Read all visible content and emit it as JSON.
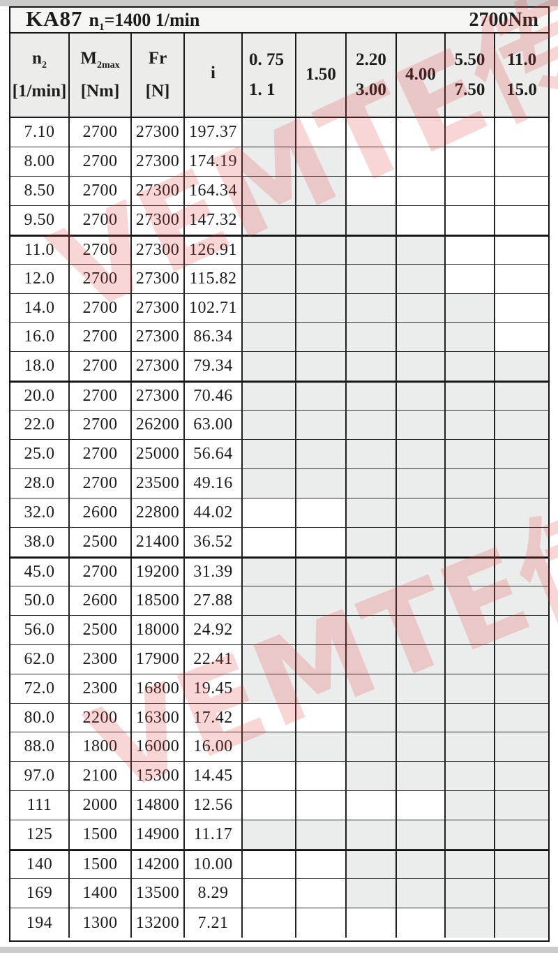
{
  "title": {
    "model": "KA87",
    "speed_prefix": "n",
    "speed_sub": "1",
    "speed_suffix": "=1400 1/min",
    "torque": "2700Nm"
  },
  "watermark": {
    "text": "VEMTE传动",
    "color": "#e23a3a"
  },
  "colors": {
    "shaded_cell": "#ebedec",
    "header_bg": "#ececeb",
    "title_bg": "#f5f5f3",
    "edge_strip": "#cbcbcb"
  },
  "table": {
    "columns": [
      {
        "id": "n2",
        "base": "n",
        "sub": "2",
        "unit": "[1/min]"
      },
      {
        "id": "m2max",
        "base": "M",
        "sub": "2max",
        "unit": "[Nm]"
      },
      {
        "id": "fr",
        "base": "Fr",
        "sub": "",
        "unit": "[N]"
      },
      {
        "id": "i",
        "base": "i",
        "sub": "",
        "unit": ""
      }
    ],
    "power_columns": [
      {
        "lines": [
          "0. 75",
          "1. 1"
        ]
      },
      {
        "lines": [
          "1.50"
        ]
      },
      {
        "lines": [
          "2.20",
          "3.00"
        ]
      },
      {
        "lines": [
          "4.00"
        ]
      },
      {
        "lines": [
          "5.50",
          "7.50"
        ]
      },
      {
        "lines": [
          "11.0",
          "15.0"
        ]
      }
    ],
    "rows": [
      {
        "n2": "7.10",
        "m2max": "2700",
        "fr": "27300",
        "i": "197.37",
        "shaded": [
          1,
          0,
          0,
          0,
          0,
          0
        ],
        "group": false
      },
      {
        "n2": "8.00",
        "m2max": "2700",
        "fr": "27300",
        "i": "174.19",
        "shaded": [
          1,
          1,
          0,
          0,
          0,
          0
        ],
        "group": false
      },
      {
        "n2": "8.50",
        "m2max": "2700",
        "fr": "27300",
        "i": "164.34",
        "shaded": [
          1,
          1,
          0,
          0,
          0,
          0
        ],
        "group": false
      },
      {
        "n2": "9.50",
        "m2max": "2700",
        "fr": "27300",
        "i": "147.32",
        "shaded": [
          1,
          1,
          1,
          0,
          0,
          0
        ],
        "group": false
      },
      {
        "n2": "11.0",
        "m2max": "2700",
        "fr": "27300",
        "i": "126.91",
        "shaded": [
          1,
          1,
          1,
          1,
          0,
          0
        ],
        "group": true
      },
      {
        "n2": "12.0",
        "m2max": "2700",
        "fr": "27300",
        "i": "115.82",
        "shaded": [
          1,
          1,
          1,
          1,
          0,
          0
        ],
        "group": false
      },
      {
        "n2": "14.0",
        "m2max": "2700",
        "fr": "27300",
        "i": "102.71",
        "shaded": [
          1,
          1,
          1,
          1,
          1,
          0
        ],
        "group": false
      },
      {
        "n2": "16.0",
        "m2max": "2700",
        "fr": "27300",
        "i": "86.34",
        "shaded": [
          1,
          1,
          1,
          1,
          1,
          0
        ],
        "group": false
      },
      {
        "n2": "18.0",
        "m2max": "2700",
        "fr": "27300",
        "i": "79.34",
        "shaded": [
          1,
          1,
          1,
          1,
          1,
          1
        ],
        "group": false
      },
      {
        "n2": "20.0",
        "m2max": "2700",
        "fr": "27300",
        "i": "70.46",
        "shaded": [
          1,
          1,
          1,
          1,
          1,
          1
        ],
        "group": true
      },
      {
        "n2": "22.0",
        "m2max": "2700",
        "fr": "26200",
        "i": "63.00",
        "shaded": [
          1,
          1,
          1,
          1,
          1,
          1
        ],
        "group": false
      },
      {
        "n2": "25.0",
        "m2max": "2700",
        "fr": "25000",
        "i": "56.64",
        "shaded": [
          1,
          1,
          1,
          1,
          1,
          1
        ],
        "group": false
      },
      {
        "n2": "28.0",
        "m2max": "2700",
        "fr": "23500",
        "i": "49.16",
        "shaded": [
          1,
          1,
          1,
          1,
          1,
          1
        ],
        "group": false
      },
      {
        "n2": "32.0",
        "m2max": "2600",
        "fr": "22800",
        "i": "44.02",
        "shaded": [
          0,
          0,
          1,
          1,
          1,
          1
        ],
        "group": false
      },
      {
        "n2": "38.0",
        "m2max": "2500",
        "fr": "21400",
        "i": "36.52",
        "shaded": [
          0,
          0,
          1,
          1,
          1,
          1
        ],
        "group": false
      },
      {
        "n2": "45.0",
        "m2max": "2700",
        "fr": "19200",
        "i": "31.39",
        "shaded": [
          1,
          1,
          1,
          1,
          1,
          1
        ],
        "group": true
      },
      {
        "n2": "50.0",
        "m2max": "2600",
        "fr": "18500",
        "i": "27.88",
        "shaded": [
          1,
          1,
          1,
          1,
          1,
          1
        ],
        "group": false
      },
      {
        "n2": "56.0",
        "m2max": "2500",
        "fr": "18000",
        "i": "24.92",
        "shaded": [
          1,
          1,
          1,
          1,
          1,
          1
        ],
        "group": false
      },
      {
        "n2": "62.0",
        "m2max": "2300",
        "fr": "17900",
        "i": "22.41",
        "shaded": [
          1,
          1,
          1,
          1,
          1,
          1
        ],
        "group": false
      },
      {
        "n2": "72.0",
        "m2max": "2300",
        "fr": "16800",
        "i": "19.45",
        "shaded": [
          1,
          1,
          1,
          1,
          1,
          1
        ],
        "group": false
      },
      {
        "n2": "80.0",
        "m2max": "2200",
        "fr": "16300",
        "i": "17.42",
        "shaded": [
          0,
          0,
          1,
          1,
          1,
          1
        ],
        "group": false
      },
      {
        "n2": "88.0",
        "m2max": "1800",
        "fr": "16000",
        "i": "16.00",
        "shaded": [
          1,
          1,
          1,
          1,
          1,
          1
        ],
        "group": false
      },
      {
        "n2": "97.0",
        "m2max": "2100",
        "fr": "15300",
        "i": "14.45",
        "shaded": [
          0,
          0,
          1,
          1,
          1,
          1
        ],
        "group": false
      },
      {
        "n2": "111",
        "m2max": "2000",
        "fr": "14800",
        "i": "12.56",
        "shaded": [
          0,
          0,
          0,
          0,
          1,
          1
        ],
        "group": false
      },
      {
        "n2": "125",
        "m2max": "1500",
        "fr": "14900",
        "i": "11.17",
        "shaded": [
          1,
          1,
          1,
          1,
          1,
          1
        ],
        "group": false
      },
      {
        "n2": "140",
        "m2max": "1500",
        "fr": "14200",
        "i": "10.00",
        "shaded": [
          0,
          0,
          1,
          1,
          1,
          1
        ],
        "group": true
      },
      {
        "n2": "169",
        "m2max": "1400",
        "fr": "13500",
        "i": "8.29",
        "shaded": [
          0,
          0,
          1,
          1,
          1,
          1
        ],
        "group": false
      },
      {
        "n2": "194",
        "m2max": "1300",
        "fr": "13200",
        "i": "7.21",
        "shaded": [
          0,
          0,
          0,
          0,
          1,
          1
        ],
        "group": false
      }
    ]
  }
}
